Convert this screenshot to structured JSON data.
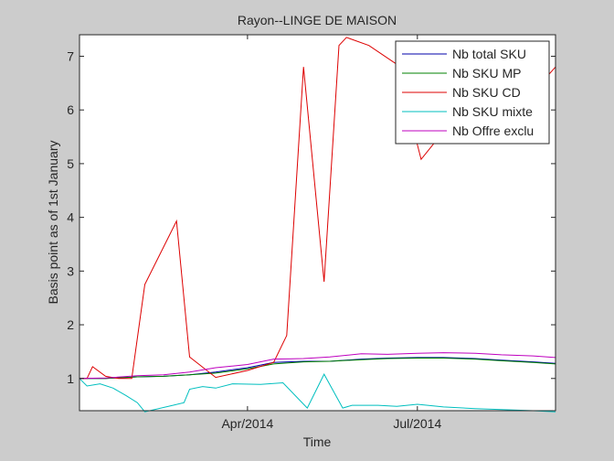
{
  "chart_data": {
    "type": "line",
    "title": "Rayon--LINGE DE MAISON",
    "xlabel": "Time",
    "ylabel": "Basis point as of 1st January",
    "xlim": [
      "2014-01-01",
      "2014-09-13"
    ],
    "ylim": [
      0.4,
      7.4
    ],
    "xticks": [
      {
        "date": "2014-04-01",
        "label": "Apr/2014"
      },
      {
        "date": "2014-07-01",
        "label": "Jul/2014"
      }
    ],
    "yticks": [
      1,
      2,
      3,
      4,
      5,
      6,
      7
    ],
    "grid": false,
    "legend": "top-right",
    "series": [
      {
        "name": "Nb total SKU",
        "color": "#0000aa",
        "points": [
          [
            "2014-01-01",
            1.0
          ],
          [
            "2014-01-15",
            1.0
          ],
          [
            "2014-02-01",
            1.03
          ],
          [
            "2014-02-15",
            1.04
          ],
          [
            "2014-03-01",
            1.07
          ],
          [
            "2014-03-15",
            1.12
          ],
          [
            "2014-04-01",
            1.2
          ],
          [
            "2014-04-15",
            1.3
          ],
          [
            "2014-05-01",
            1.32
          ],
          [
            "2014-05-15",
            1.32
          ],
          [
            "2014-06-01",
            1.36
          ],
          [
            "2014-06-15",
            1.38
          ],
          [
            "2014-07-01",
            1.39
          ],
          [
            "2014-07-15",
            1.39
          ],
          [
            "2014-08-01",
            1.37
          ],
          [
            "2014-08-15",
            1.34
          ],
          [
            "2014-09-01",
            1.31
          ],
          [
            "2014-09-13",
            1.28
          ]
        ]
      },
      {
        "name": "Nb SKU MP",
        "color": "#008000",
        "points": [
          [
            "2014-01-01",
            1.0
          ],
          [
            "2014-01-15",
            1.0
          ],
          [
            "2014-02-01",
            1.03
          ],
          [
            "2014-02-15",
            1.04
          ],
          [
            "2014-03-01",
            1.07
          ],
          [
            "2014-03-15",
            1.1
          ],
          [
            "2014-04-01",
            1.18
          ],
          [
            "2014-04-15",
            1.27
          ],
          [
            "2014-05-01",
            1.31
          ],
          [
            "2014-05-15",
            1.32
          ],
          [
            "2014-06-01",
            1.35
          ],
          [
            "2014-06-15",
            1.37
          ],
          [
            "2014-07-01",
            1.38
          ],
          [
            "2014-07-15",
            1.38
          ],
          [
            "2014-08-01",
            1.36
          ],
          [
            "2014-08-15",
            1.33
          ],
          [
            "2014-09-01",
            1.3
          ],
          [
            "2014-09-13",
            1.27
          ]
        ]
      },
      {
        "name": "Nb SKU CD",
        "color": "#dd0000",
        "points": [
          [
            "2014-01-01",
            1.0
          ],
          [
            "2014-01-05",
            1.0
          ],
          [
            "2014-01-08",
            1.22
          ],
          [
            "2014-01-15",
            1.04
          ],
          [
            "2014-01-22",
            1.0
          ],
          [
            "2014-01-29",
            1.0
          ],
          [
            "2014-02-05",
            2.75
          ],
          [
            "2014-02-22",
            3.93
          ],
          [
            "2014-03-01",
            1.4
          ],
          [
            "2014-03-15",
            1.02
          ],
          [
            "2014-04-01",
            1.15
          ],
          [
            "2014-04-15",
            1.3
          ],
          [
            "2014-04-22",
            1.8
          ],
          [
            "2014-05-01",
            6.8
          ],
          [
            "2014-05-12",
            2.8
          ],
          [
            "2014-05-20",
            7.2
          ],
          [
            "2014-05-24",
            7.35
          ],
          [
            "2014-06-05",
            7.2
          ],
          [
            "2014-06-20",
            6.85
          ],
          [
            "2014-07-03",
            5.08
          ],
          [
            "2014-07-22",
            5.9
          ],
          [
            "2014-08-08",
            6.2
          ],
          [
            "2014-08-28",
            6.4
          ],
          [
            "2014-09-04",
            6.45
          ],
          [
            "2014-09-13",
            6.8
          ]
        ]
      },
      {
        "name": "Nb SKU mixte",
        "color": "#00bfbf",
        "points": [
          [
            "2014-01-01",
            1.0
          ],
          [
            "2014-01-05",
            0.86
          ],
          [
            "2014-01-12",
            0.9
          ],
          [
            "2014-01-19",
            0.82
          ],
          [
            "2014-01-26",
            0.68
          ],
          [
            "2014-02-01",
            0.55
          ],
          [
            "2014-02-05",
            0.38
          ],
          [
            "2014-02-20",
            0.5
          ],
          [
            "2014-02-26",
            0.55
          ],
          [
            "2014-03-01",
            0.8
          ],
          [
            "2014-03-08",
            0.85
          ],
          [
            "2014-03-15",
            0.82
          ],
          [
            "2014-03-24",
            0.9
          ],
          [
            "2014-04-08",
            0.89
          ],
          [
            "2014-04-20",
            0.92
          ],
          [
            "2014-05-03",
            0.45
          ],
          [
            "2014-05-12",
            1.08
          ],
          [
            "2014-05-22",
            0.45
          ],
          [
            "2014-05-27",
            0.5
          ],
          [
            "2014-06-10",
            0.5
          ],
          [
            "2014-06-20",
            0.48
          ],
          [
            "2014-07-01",
            0.52
          ],
          [
            "2014-07-15",
            0.47
          ],
          [
            "2014-08-01",
            0.44
          ],
          [
            "2014-08-15",
            0.42
          ],
          [
            "2014-09-01",
            0.4
          ],
          [
            "2014-09-13",
            0.38
          ]
        ]
      },
      {
        "name": "Nb Offre exclu",
        "color": "#bf00bf",
        "points": [
          [
            "2014-01-01",
            1.0
          ],
          [
            "2014-01-15",
            1.01
          ],
          [
            "2014-02-01",
            1.05
          ],
          [
            "2014-02-15",
            1.07
          ],
          [
            "2014-03-01",
            1.12
          ],
          [
            "2014-03-15",
            1.2
          ],
          [
            "2014-04-01",
            1.26
          ],
          [
            "2014-04-15",
            1.36
          ],
          [
            "2014-05-01",
            1.37
          ],
          [
            "2014-05-15",
            1.4
          ],
          [
            "2014-06-01",
            1.46
          ],
          [
            "2014-06-15",
            1.45
          ],
          [
            "2014-07-01",
            1.47
          ],
          [
            "2014-07-15",
            1.48
          ],
          [
            "2014-08-01",
            1.47
          ],
          [
            "2014-08-15",
            1.44
          ],
          [
            "2014-09-01",
            1.42
          ],
          [
            "2014-09-13",
            1.39
          ]
        ]
      }
    ]
  }
}
